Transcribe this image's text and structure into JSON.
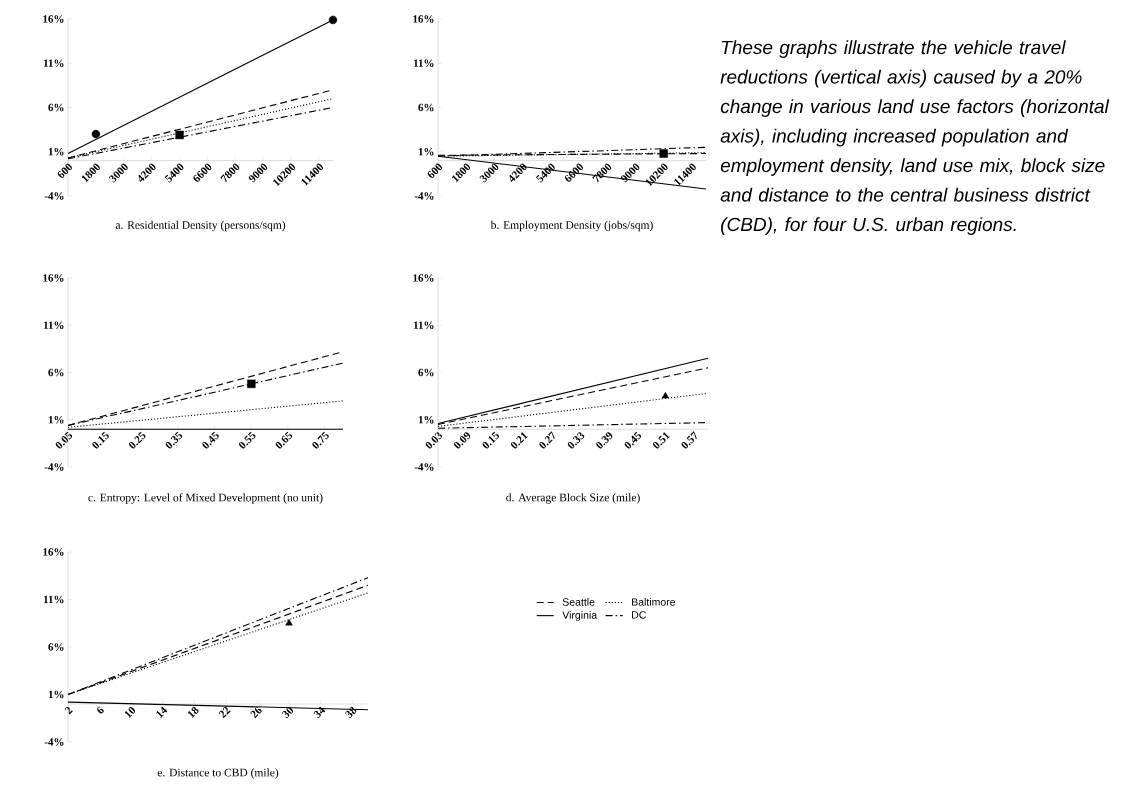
{
  "chart_data": [
    {
      "type": "line",
      "xlabel": "a.    Residential Density (persons/sqm)",
      "xlim": [
        600,
        12000
      ],
      "ylim": [
        -4,
        16
      ],
      "xticks": [
        600,
        1800,
        3000,
        4200,
        5400,
        6600,
        7800,
        9000,
        10200,
        11400
      ],
      "yticks": [
        {
          "value": -4,
          "label": "-4%"
        },
        {
          "value": 1,
          "label": "1%"
        },
        {
          "value": 6,
          "label": "6%"
        },
        {
          "value": 11,
          "label": "11%"
        },
        {
          "value": 16,
          "label": "16%"
        }
      ],
      "series": [
        {
          "color": "#000000",
          "line_style": "dashed",
          "x": [
            600,
            12000
          ],
          "values": [
            0.3,
            8.0
          ]
        },
        {
          "color": "#000000",
          "line_style": "dotted",
          "x": [
            600,
            12000
          ],
          "values": [
            0.3,
            7.0
          ]
        },
        {
          "color": "#000000",
          "line_style": "solid",
          "x": [
            600,
            12000
          ],
          "values": [
            0.8,
            15.9
          ]
        },
        {
          "color": "#000000",
          "line_style": "dashdot",
          "x": [
            600,
            12000
          ],
          "values": [
            0.2,
            6.0
          ]
        },
        {
          "type": "scatter",
          "marker": "circle",
          "color": "#000000",
          "x": [
            1800,
            12000
          ],
          "values": [
            3.0,
            15.9
          ]
        },
        {
          "type": "scatter",
          "marker": "square",
          "color": "#000000",
          "x": [
            5400
          ],
          "values": [
            2.9
          ]
        }
      ]
    },
    {
      "type": "line",
      "xlabel": "b. Employment Density (jobs/sqm)",
      "xlim": [
        600,
        12000
      ],
      "ylim": [
        -4,
        16
      ],
      "xticks": [
        600,
        1800,
        3000,
        4200,
        5400,
        6600,
        7800,
        9000,
        10200,
        11400
      ],
      "yticks": [
        {
          "value": -4,
          "label": "-4%"
        },
        {
          "value": 1,
          "label": "1%"
        },
        {
          "value": 6,
          "label": "6%"
        },
        {
          "value": 11,
          "label": "11%"
        },
        {
          "value": 16,
          "label": "16%"
        }
      ],
      "series": [
        {
          "color": "#000000",
          "line_style": "dashed",
          "x": [
            600,
            12000
          ],
          "values": [
            0.6,
            0.8
          ]
        },
        {
          "color": "#000000",
          "line_style": "dotted",
          "x": [
            600,
            12000
          ],
          "values": [
            0.5,
            0.9
          ]
        },
        {
          "color": "#000000",
          "line_style": "solid",
          "x": [
            600,
            12000
          ],
          "values": [
            0.5,
            -3.2
          ]
        },
        {
          "color": "#000000",
          "line_style": "dashdot",
          "x": [
            600,
            12000
          ],
          "values": [
            0.5,
            1.5
          ]
        },
        {
          "type": "scatter",
          "marker": "square",
          "color": "#000000",
          "x": [
            10200
          ],
          "values": [
            0.8
          ]
        }
      ]
    },
    {
      "type": "line",
      "xlabel": "c. Entropy: Level of Mixed Development (no unit)",
      "xlim": [
        0.05,
        0.8
      ],
      "ylim": [
        -4,
        16
      ],
      "xticks": [
        0.05,
        0.15,
        0.25,
        0.35,
        0.45,
        0.55,
        0.65,
        0.75
      ],
      "yticks": [
        {
          "value": -4,
          "label": "-4%"
        },
        {
          "value": 1,
          "label": "1%"
        },
        {
          "value": 6,
          "label": "6%"
        },
        {
          "value": 11,
          "label": "11%"
        },
        {
          "value": 16,
          "label": "16%"
        }
      ],
      "series": [
        {
          "color": "#000000",
          "line_style": "dashed",
          "x": [
            0.05,
            0.8
          ],
          "values": [
            0.4,
            8.2
          ]
        },
        {
          "color": "#000000",
          "line_style": "dotted",
          "x": [
            0.05,
            0.8
          ],
          "values": [
            0.2,
            3.0
          ]
        },
        {
          "color": "#000000",
          "line_style": "solid",
          "x": [
            0.05,
            0.8
          ],
          "values": [
            0.0,
            0.0
          ]
        },
        {
          "color": "#000000",
          "line_style": "dashdot",
          "x": [
            0.05,
            0.8
          ],
          "values": [
            0.4,
            7.0
          ]
        },
        {
          "type": "scatter",
          "marker": "square",
          "color": "#000000",
          "x": [
            0.55
          ],
          "values": [
            4.8
          ]
        }
      ]
    },
    {
      "type": "line",
      "xlabel": "d. Average Block Size (mile)",
      "xlim": [
        0.03,
        0.6
      ],
      "ylim": [
        -4,
        16
      ],
      "xticks": [
        0.03,
        0.09,
        0.15,
        0.21,
        0.27,
        0.33,
        0.39,
        0.45,
        0.51,
        0.57
      ],
      "yticks": [
        {
          "value": -4,
          "label": "-4%"
        },
        {
          "value": 1,
          "label": "1%"
        },
        {
          "value": 6,
          "label": "6%"
        },
        {
          "value": 11,
          "label": "11%"
        },
        {
          "value": 16,
          "label": "16%"
        }
      ],
      "series": [
        {
          "color": "#000000",
          "line_style": "dashed",
          "x": [
            0.03,
            0.6
          ],
          "values": [
            0.5,
            6.5
          ]
        },
        {
          "color": "#000000",
          "line_style": "dotted",
          "x": [
            0.03,
            0.6
          ],
          "values": [
            0.3,
            3.8
          ]
        },
        {
          "color": "#000000",
          "line_style": "solid",
          "x": [
            0.03,
            0.6
          ],
          "values": [
            0.6,
            7.5
          ]
        },
        {
          "color": "#000000",
          "line_style": "dashdot",
          "x": [
            0.03,
            0.6
          ],
          "values": [
            0.1,
            0.7
          ]
        },
        {
          "type": "scatter",
          "marker": "triangle",
          "color": "#000000",
          "x": [
            0.51
          ],
          "values": [
            3.5
          ]
        }
      ]
    },
    {
      "type": "line",
      "xlabel": "e. Distance to CBD (mile)",
      "xlim": [
        2,
        40
      ],
      "ylim": [
        -4,
        16
      ],
      "xticks": [
        2,
        6,
        10,
        14,
        18,
        22,
        26,
        30,
        34,
        38
      ],
      "yticks": [
        {
          "value": -4,
          "label": "-4%"
        },
        {
          "value": 1,
          "label": "1%"
        },
        {
          "value": 6,
          "label": "6%"
        },
        {
          "value": 11,
          "label": "11%"
        },
        {
          "value": 16,
          "label": "16%"
        }
      ],
      "legend": "right",
      "series": [
        {
          "name": "Seattle",
          "color": "#000000",
          "line_style": "dashed",
          "x": [
            2,
            40
          ],
          "values": [
            1.0,
            12.5
          ]
        },
        {
          "name": "Baltimore",
          "color": "#000000",
          "line_style": "dotted",
          "x": [
            2,
            40
          ],
          "values": [
            1.0,
            11.7
          ]
        },
        {
          "name": "Virginia",
          "color": "#000000",
          "line_style": "solid",
          "x": [
            2,
            40
          ],
          "values": [
            0.2,
            -0.6
          ]
        },
        {
          "name": "DC",
          "color": "#000000",
          "line_style": "dashdot",
          "x": [
            2,
            40
          ],
          "values": [
            1.0,
            13.3
          ]
        },
        {
          "type": "scatter",
          "marker": "triangle",
          "color": "#000000",
          "x": [
            30
          ],
          "values": [
            8.5
          ]
        }
      ]
    },
    {
      "type": "other",
      "annotations": [
        "These graphs illustrate the vehicle travel reductions (vertical axis) caused by a 20% change in various land use factors (horizontal axis), including increased population and employment density, land use mix, block size and distance to the central business district (CBD), for four U.S. urban regions."
      ]
    }
  ]
}
